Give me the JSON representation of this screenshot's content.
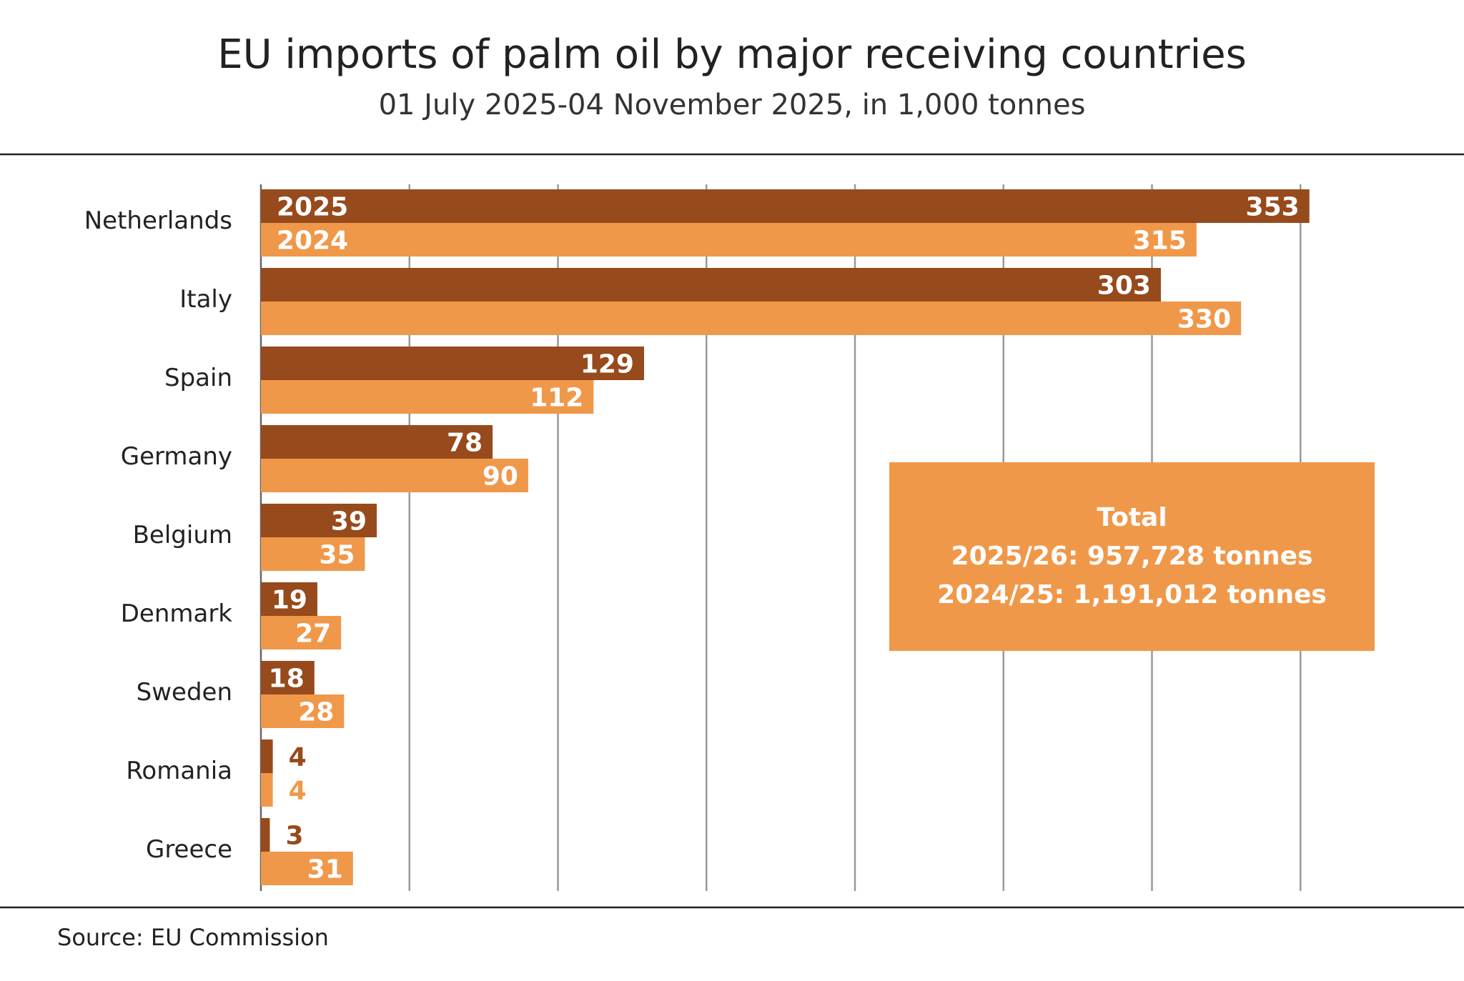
{
  "source": "Source: EU Commission",
  "total_box": {
    "heading": "Total",
    "line_2025": "2025/26: 957,728 tonnes",
    "line_2024": "2024/25: 1,191,012 tonnes"
  },
  "colors": {
    "series_2025": "#974a1b",
    "series_2024": "#f0984a",
    "grid": "#999999",
    "rule": "#222222",
    "label_text": "#ffffff"
  },
  "chart_data": {
    "type": "bar",
    "orientation": "horizontal",
    "title": "EU imports of palm oil by major receiving countries",
    "subtitle": "01 July 2025-04 November 2025, in 1,000 tonnes",
    "categories": [
      "Netherlands",
      "Italy",
      "Spain",
      "Germany",
      "Belgium",
      "Denmark",
      "Sweden",
      "Romania",
      "Greece"
    ],
    "series": [
      {
        "name": "2025",
        "values": [
          353,
          303,
          129,
          78,
          39,
          19,
          18,
          4,
          3
        ]
      },
      {
        "name": "2024",
        "values": [
          315,
          330,
          112,
          90,
          35,
          27,
          28,
          4,
          31
        ]
      }
    ],
    "xlim": [
      0,
      400
    ],
    "grid_step": 50,
    "grid": true,
    "xlabel": "",
    "ylabel": "",
    "legend": "inline labels on first category bars"
  }
}
